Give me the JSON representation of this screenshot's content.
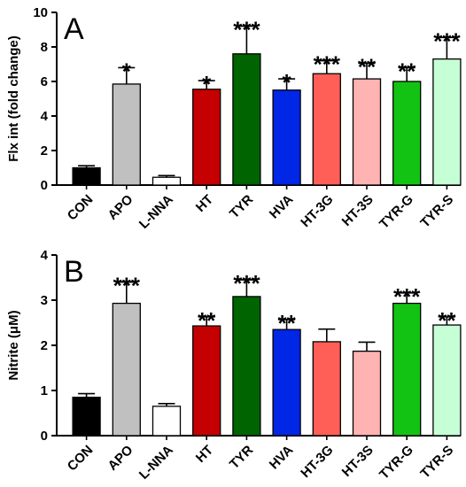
{
  "chart_data": [
    {
      "type": "bar",
      "panel_label": "A",
      "categories": [
        "CON",
        "APO",
        "L-NNA",
        "HT",
        "TYR",
        "HVA",
        "HT-3G",
        "HT-3S",
        "TYR-G",
        "TYR-S"
      ],
      "values": [
        1.0,
        5.85,
        0.45,
        5.55,
        7.6,
        5.5,
        6.45,
        6.15,
        6.0,
        7.3
      ],
      "errors": [
        0.12,
        0.95,
        0.1,
        0.5,
        1.6,
        0.65,
        0.75,
        0.9,
        0.8,
        1.25
      ],
      "significance": [
        "",
        "*",
        "",
        "*",
        "***",
        "*",
        "***",
        "**",
        "**",
        "***"
      ],
      "colors": [
        "#000000",
        "#c0c0c0",
        "#ffffff",
        "#c40000",
        "#006400",
        "#0026e6",
        "#ff5f57",
        "#ffb3b3",
        "#13c313",
        "#c6ffd6"
      ],
      "ylabel": "Flx int (fold change)",
      "ylim": [
        0,
        10
      ],
      "yticks": [
        0,
        2,
        4,
        6,
        8,
        10
      ]
    },
    {
      "type": "bar",
      "panel_label": "B",
      "categories": [
        "CON",
        "APO",
        "L-NNA",
        "HT",
        "TYR",
        "HVA",
        "HT-3G",
        "HT-3S",
        "TYR-G",
        "TYR-S"
      ],
      "values": [
        0.85,
        2.93,
        0.65,
        2.43,
        3.08,
        2.35,
        2.08,
        1.87,
        2.93,
        2.45
      ],
      "errors": [
        0.08,
        0.47,
        0.06,
        0.2,
        0.37,
        0.22,
        0.28,
        0.2,
        0.23,
        0.18
      ],
      "significance": [
        "",
        "***",
        "",
        "**",
        "***",
        "**",
        "",
        "",
        "***",
        "**"
      ],
      "colors": [
        "#000000",
        "#c0c0c0",
        "#ffffff",
        "#c40000",
        "#006400",
        "#0026e6",
        "#ff5f57",
        "#ffb3b3",
        "#13c313",
        "#c6ffd6"
      ],
      "ylabel": "Nitrite (μM)",
      "ylim": [
        0,
        4
      ],
      "yticks": [
        0,
        1,
        2,
        3,
        4
      ]
    }
  ]
}
